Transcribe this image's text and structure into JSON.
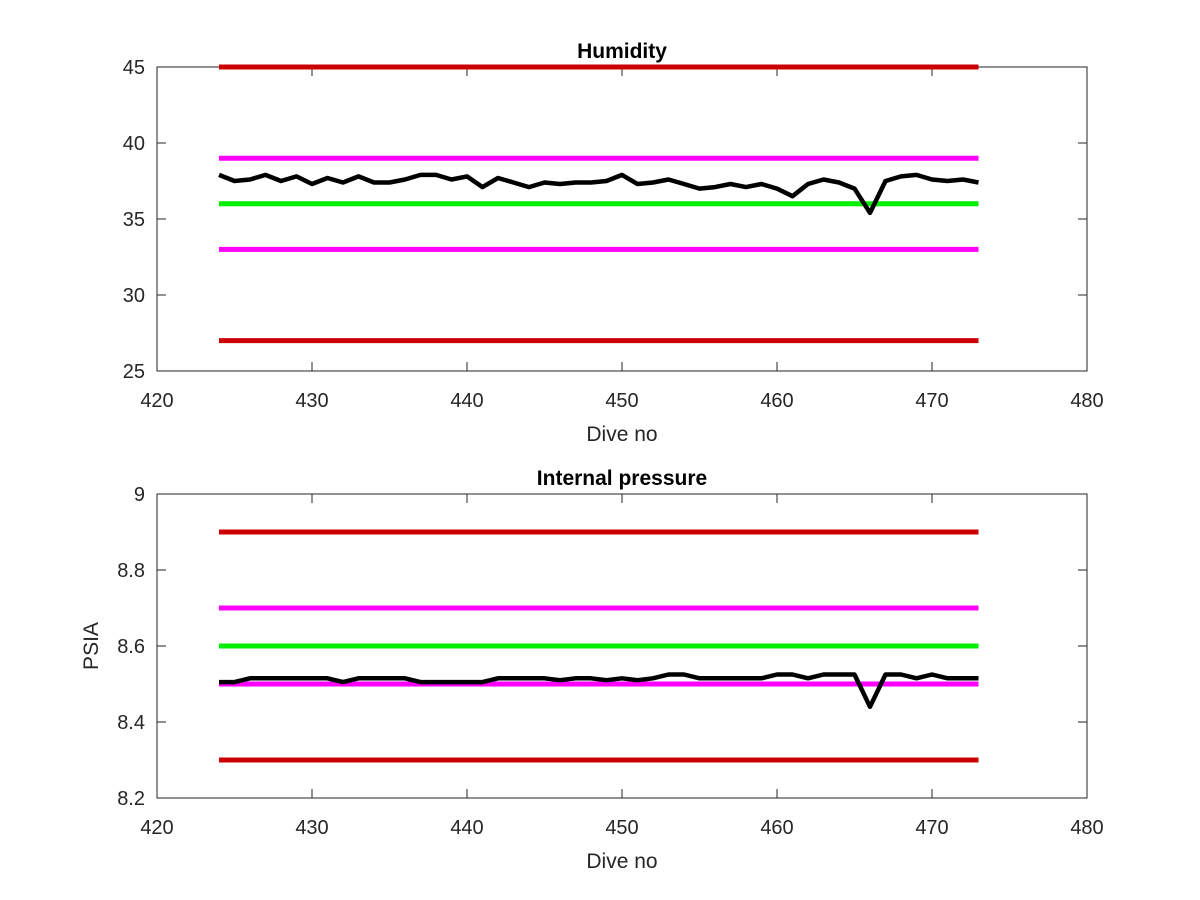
{
  "chart_data": [
    {
      "type": "line",
      "title": "Humidity",
      "xlabel": "Dive no",
      "ylabel": "",
      "xlim": [
        420,
        480
      ],
      "ylim": [
        25,
        45
      ],
      "xticks": [
        420,
        430,
        440,
        450,
        460,
        470,
        480
      ],
      "xtick_labels": [
        "420",
        "430",
        "440",
        "450",
        "460",
        "470",
        "480"
      ],
      "yticks": [
        25,
        30,
        35,
        40,
        45
      ],
      "ytick_labels": [
        "25",
        "30",
        "35",
        "40",
        "45"
      ],
      "grid": false,
      "limit_lines": [
        {
          "y": 45,
          "color": "#cc0000",
          "x": [
            424,
            473
          ]
        },
        {
          "y": 39,
          "color": "#ff00ff",
          "x": [
            424,
            473
          ]
        },
        {
          "y": 36,
          "color": "#00ee00",
          "x": [
            424,
            473
          ]
        },
        {
          "y": 33,
          "color": "#ff00ff",
          "x": [
            424,
            473
          ]
        },
        {
          "y": 27,
          "color": "#cc0000",
          "x": [
            424,
            473
          ]
        }
      ],
      "series": [
        {
          "color": "#000000",
          "x": [
            424,
            425,
            426,
            427,
            428,
            429,
            430,
            431,
            432,
            433,
            434,
            435,
            436,
            437,
            438,
            439,
            440,
            441,
            442,
            443,
            444,
            445,
            446,
            447,
            448,
            449,
            450,
            451,
            452,
            453,
            454,
            455,
            456,
            457,
            458,
            459,
            460,
            461,
            462,
            463,
            464,
            465,
            466,
            467,
            468,
            469,
            470,
            471,
            472,
            473
          ],
          "values": [
            37.9,
            37.5,
            37.6,
            37.9,
            37.5,
            37.8,
            37.3,
            37.7,
            37.4,
            37.8,
            37.4,
            37.4,
            37.6,
            37.9,
            37.9,
            37.6,
            37.8,
            37.1,
            37.7,
            37.4,
            37.1,
            37.4,
            37.3,
            37.4,
            37.4,
            37.5,
            37.9,
            37.3,
            37.4,
            37.6,
            37.3,
            37.0,
            37.1,
            37.3,
            37.1,
            37.3,
            37.0,
            36.5,
            37.3,
            37.6,
            37.4,
            37.0,
            35.4,
            37.5,
            37.8,
            37.9,
            37.6,
            37.5,
            37.6,
            37.4
          ]
        }
      ]
    },
    {
      "type": "line",
      "title": "Internal pressure",
      "xlabel": "Dive no",
      "ylabel": "PSIA",
      "xlim": [
        420,
        480
      ],
      "ylim": [
        8.2,
        9
      ],
      "xticks": [
        420,
        430,
        440,
        450,
        460,
        470,
        480
      ],
      "xtick_labels": [
        "420",
        "430",
        "440",
        "450",
        "460",
        "470",
        "480"
      ],
      "yticks": [
        8.2,
        8.4,
        8.6,
        8.8,
        9
      ],
      "ytick_labels": [
        "8.2",
        "8.4",
        "8.6",
        "8.8",
        "9"
      ],
      "grid": false,
      "limit_lines": [
        {
          "y": 8.9,
          "color": "#cc0000",
          "x": [
            424,
            473
          ]
        },
        {
          "y": 8.7,
          "color": "#ff00ff",
          "x": [
            424,
            473
          ]
        },
        {
          "y": 8.6,
          "color": "#00ee00",
          "x": [
            424,
            473
          ]
        },
        {
          "y": 8.5,
          "color": "#ff00ff",
          "x": [
            424,
            473
          ]
        },
        {
          "y": 8.3,
          "color": "#cc0000",
          "x": [
            424,
            473
          ]
        }
      ],
      "series": [
        {
          "color": "#000000",
          "x": [
            424,
            425,
            426,
            427,
            428,
            429,
            430,
            431,
            432,
            433,
            434,
            435,
            436,
            437,
            438,
            439,
            440,
            441,
            442,
            443,
            444,
            445,
            446,
            447,
            448,
            449,
            450,
            451,
            452,
            453,
            454,
            455,
            456,
            457,
            458,
            459,
            460,
            461,
            462,
            463,
            464,
            465,
            466,
            467,
            468,
            469,
            470,
            471,
            472,
            473
          ],
          "values": [
            8.505,
            8.505,
            8.515,
            8.515,
            8.515,
            8.515,
            8.515,
            8.515,
            8.505,
            8.515,
            8.515,
            8.515,
            8.515,
            8.505,
            8.505,
            8.505,
            8.505,
            8.505,
            8.515,
            8.515,
            8.515,
            8.515,
            8.51,
            8.515,
            8.515,
            8.51,
            8.515,
            8.51,
            8.515,
            8.525,
            8.525,
            8.515,
            8.515,
            8.515,
            8.515,
            8.515,
            8.525,
            8.525,
            8.515,
            8.525,
            8.525,
            8.525,
            8.44,
            8.525,
            8.525,
            8.515,
            8.525,
            8.515,
            8.515,
            8.515
          ]
        }
      ]
    }
  ]
}
